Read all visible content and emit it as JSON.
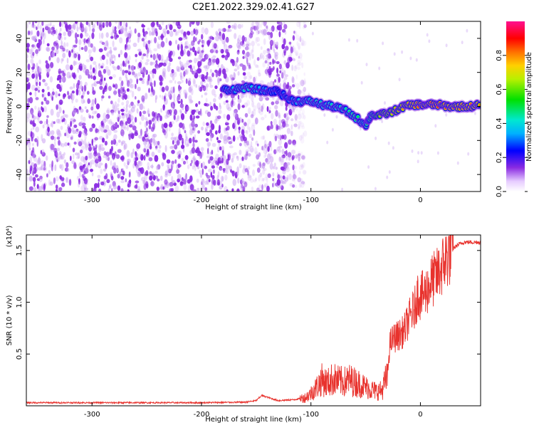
{
  "title": "C2E1.2022.329.02.41.G27",
  "colors": {
    "snr_line": "#e8322d",
    "scatter_purple": "#8a2be2",
    "background": "#ffffff"
  },
  "chart_data": [
    {
      "type": "heatmap",
      "xlabel": "Height of straight line (km)",
      "ylabel": "Frequency (Hz)",
      "xlim": [
        -360,
        55
      ],
      "ylim": [
        -50,
        50
      ],
      "x_ticks": [
        -300,
        -200,
        -100,
        0
      ],
      "x_tick_labels": [
        "-300",
        "-200",
        "-100",
        "0"
      ],
      "y_ticks": [
        -40,
        -20,
        0,
        20,
        40
      ],
      "y_tick_labels": [
        "-40",
        "-20",
        "0",
        "20",
        "40"
      ],
      "colorbar": {
        "label": "Normalized spectral amplitude",
        "range": [
          0,
          1
        ],
        "ticks": [
          0.0,
          0.2,
          0.4,
          0.6,
          0.8
        ],
        "tick_labels": [
          "0.0",
          "0.2",
          "0.4",
          "0.6",
          "0.8"
        ],
        "colormap": "rainbow-white-to-magenta"
      },
      "noise_region": {
        "x": [
          -360,
          -105
        ],
        "y": [
          -50,
          50
        ],
        "amplitude": 0.1
      },
      "signal_track": [
        {
          "x": -180,
          "y": 10,
          "amplitude": 0.35
        },
        {
          "x": -170,
          "y": 10,
          "amplitude": 0.4
        },
        {
          "x": -160,
          "y": 11,
          "amplitude": 0.45
        },
        {
          "x": -150,
          "y": 10,
          "amplitude": 0.4
        },
        {
          "x": -140,
          "y": 9,
          "amplitude": 0.35
        },
        {
          "x": -130,
          "y": 9,
          "amplitude": 0.3
        },
        {
          "x": -120,
          "y": 4,
          "amplitude": 0.35
        },
        {
          "x": -110,
          "y": 3,
          "amplitude": 0.4
        },
        {
          "x": -100,
          "y": 3,
          "amplitude": 0.45
        },
        {
          "x": -90,
          "y": 1,
          "amplitude": 0.45
        },
        {
          "x": -80,
          "y": 0,
          "amplitude": 0.45
        },
        {
          "x": -70,
          "y": -2,
          "amplitude": 0.45
        },
        {
          "x": -60,
          "y": -6,
          "amplitude": 0.5
        },
        {
          "x": -50,
          "y": -11,
          "amplitude": 0.5
        },
        {
          "x": -45,
          "y": -5,
          "amplitude": 0.55
        },
        {
          "x": -35,
          "y": -5,
          "amplitude": 0.75
        },
        {
          "x": -25,
          "y": -3,
          "amplitude": 0.75
        },
        {
          "x": -15,
          "y": 0,
          "amplitude": 0.8
        },
        {
          "x": -5,
          "y": 1,
          "amplitude": 0.85
        },
        {
          "x": 5,
          "y": 1,
          "amplitude": 0.9
        },
        {
          "x": 15,
          "y": 1,
          "amplitude": 0.9
        },
        {
          "x": 25,
          "y": 0,
          "amplitude": 0.85
        },
        {
          "x": 35,
          "y": 0,
          "amplitude": 0.85
        },
        {
          "x": 45,
          "y": 0,
          "amplitude": 0.85
        },
        {
          "x": 55,
          "y": 1,
          "amplitude": 0.8
        }
      ]
    },
    {
      "type": "line",
      "xlabel": "Height of straight line (km)",
      "ylabel": "SNR (10 * v/v)",
      "y_scale_label": "(x10⁴)",
      "xlim": [
        -360,
        55
      ],
      "ylim": [
        0,
        1.65
      ],
      "x_ticks": [
        -300,
        -200,
        -100,
        0
      ],
      "x_tick_labels": [
        "-300",
        "-200",
        "-100",
        "0"
      ],
      "y_ticks": [
        0.5,
        1.0,
        1.5
      ],
      "y_tick_labels": [
        "0.5",
        "1.0",
        "1.5"
      ],
      "series": [
        {
          "x": [
            -360,
            -300,
            -250,
            -200,
            -160,
            -150,
            -145,
            -130,
            -115,
            -105,
            -100,
            -95,
            -90,
            -85,
            -80,
            -75,
            -70,
            -65,
            -60,
            -55,
            -50,
            -45,
            -40,
            -35,
            -30,
            -28,
            -25,
            -20,
            -15,
            -10,
            -5,
            -2,
            0,
            5,
            10,
            15,
            20,
            25,
            30,
            35,
            40,
            45,
            50,
            55
          ],
          "y": [
            0.03,
            0.03,
            0.03,
            0.03,
            0.035,
            0.05,
            0.1,
            0.05,
            0.06,
            0.08,
            0.12,
            0.18,
            0.25,
            0.22,
            0.26,
            0.24,
            0.23,
            0.25,
            0.23,
            0.21,
            0.18,
            0.16,
            0.14,
            0.15,
            0.3,
            0.6,
            0.65,
            0.68,
            0.72,
            0.85,
            0.95,
            1.1,
            1.05,
            1.1,
            1.2,
            1.25,
            1.35,
            1.45,
            1.52,
            1.56,
            1.58,
            1.58,
            1.58,
            1.58
          ]
        }
      ]
    }
  ]
}
